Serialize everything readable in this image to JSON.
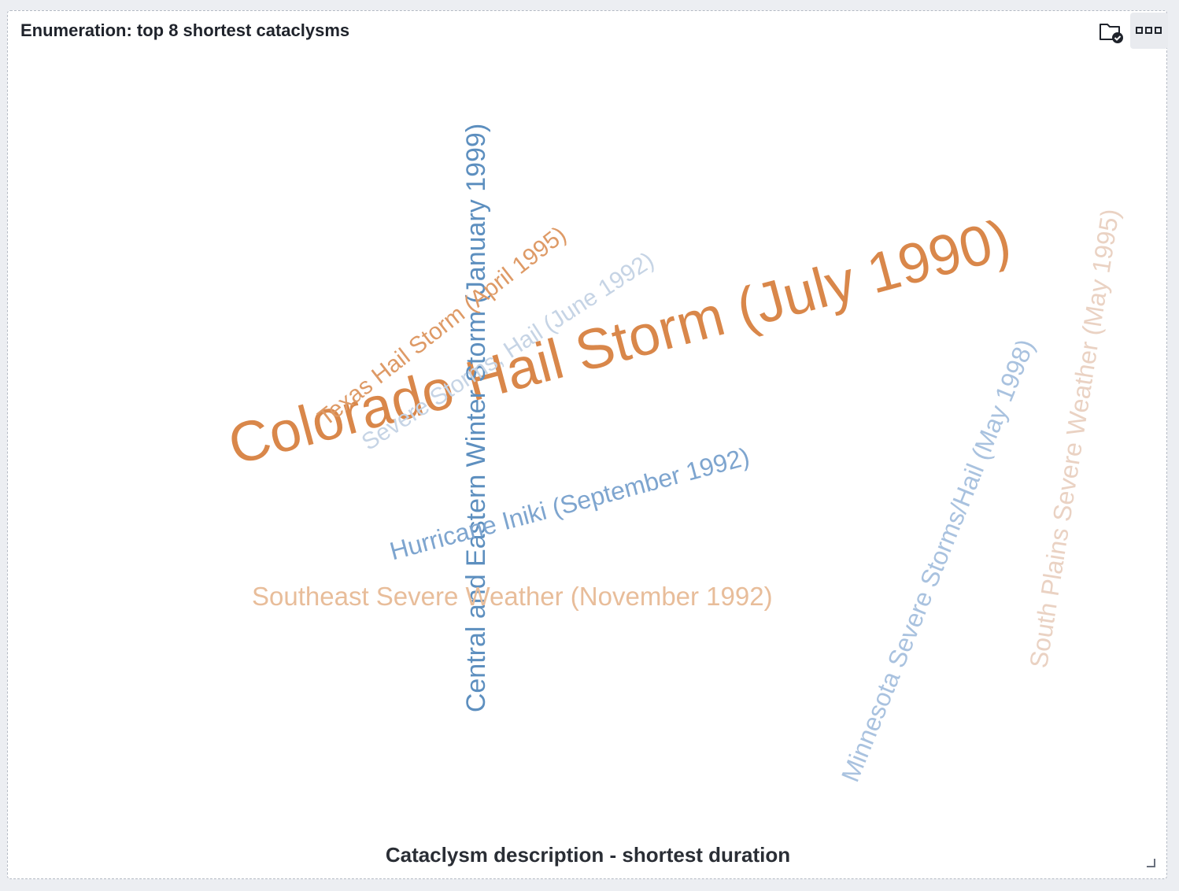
{
  "panel": {
    "title": "Enumeration: top 8 shortest cataclysms"
  },
  "toolbar": {
    "folder_icon": "folder-check-icon",
    "more_icon": "more-options-icon"
  },
  "chart_data": {
    "type": "wordcloud",
    "title": "Enumeration: top 8 shortest cataclysms",
    "xlabel": "Cataclysm description - shortest duration",
    "words": [
      {
        "text": "Colorado Hail Storm (July 1990)",
        "color": "#d9874a"
      },
      {
        "text": "Central and Eastern Winter Storm (January 1999)",
        "color": "#5d8fbf"
      },
      {
        "text": "Texas Hail Storm (April 1995)",
        "color": "#de9a66"
      },
      {
        "text": "Severe Storms, Hail (June 1992)",
        "color": "#c6d4e5"
      },
      {
        "text": "Hurricane Iniki (September 1992)",
        "color": "#7ea5cf"
      },
      {
        "text": "Southeast Severe Weather (November 1992)",
        "color": "#e8bd9a"
      },
      {
        "text": "Minnesota Severe Storms/Hail (May 1998)",
        "color": "#a9c2df"
      },
      {
        "text": "South Plains Severe Weather (May 1995)",
        "color": "#ead2c3"
      }
    ]
  }
}
